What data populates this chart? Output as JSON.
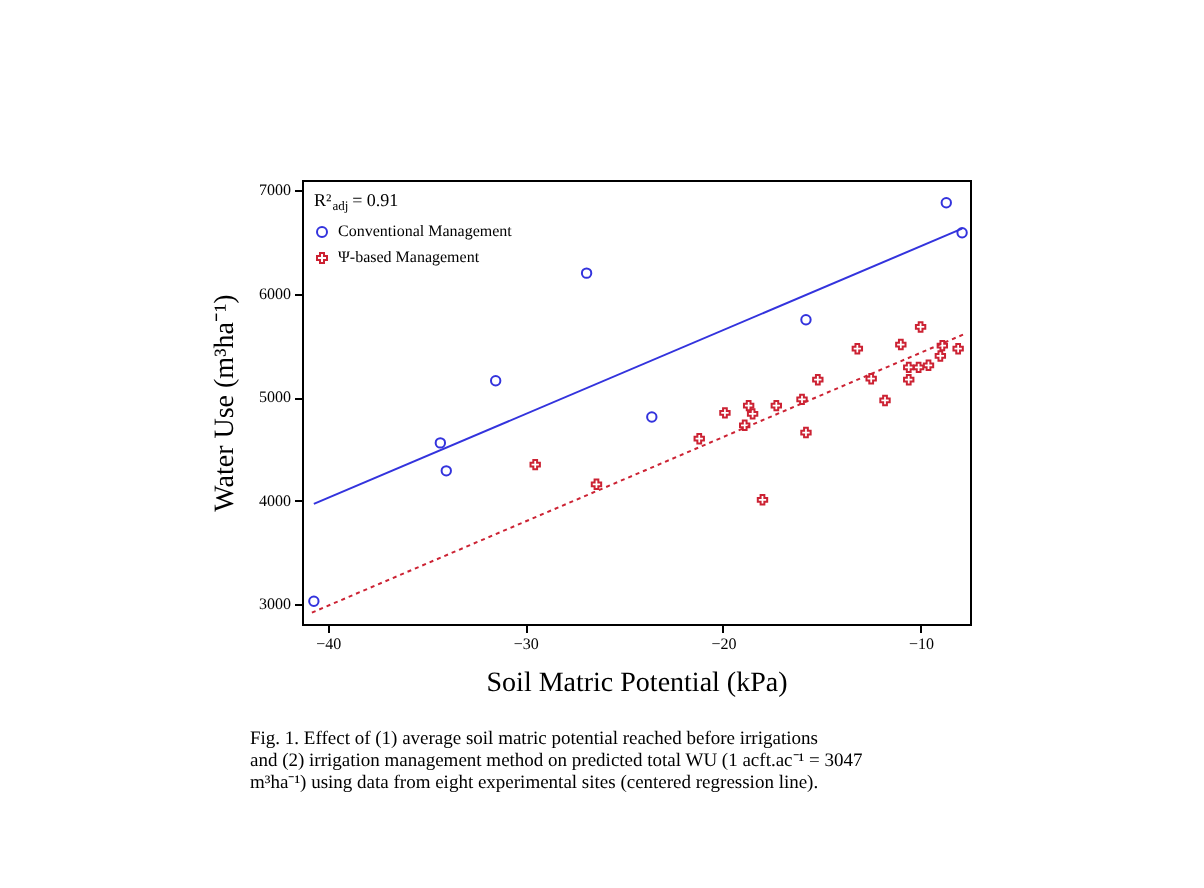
{
  "chart_data": {
    "type": "scatter",
    "xlabel": "Soil Matric Potential (kPa)",
    "ylabel": "Water Use (m³ha⁻¹)",
    "xlim": [
      -41.3,
      -7.5
    ],
    "xticks": [
      -40,
      -30,
      -20,
      -10
    ],
    "ylim": [
      2810,
      7100
    ],
    "yticks": [
      3000,
      4000,
      5000,
      6000,
      7000
    ],
    "grid": false,
    "legend": "top left",
    "series": [
      {
        "name": "Conventional Management",
        "color": "#3333dd",
        "marker": "circle",
        "x": [
          -40.7,
          -34.3,
          -34.0,
          -31.5,
          -26.9,
          -23.6,
          -15.8,
          -8.7,
          -7.9
        ],
        "values": [
          3030,
          4560,
          4290,
          5160,
          6200,
          4810,
          5750,
          6880,
          6590
        ]
      },
      {
        "name": "Ψ-based Management",
        "color": "#cc2233",
        "marker": "cross",
        "x": [
          -29.5,
          -26.4,
          -21.2,
          -19.9,
          -18.7,
          -18.5,
          -18.9,
          -18.0,
          -17.3,
          -16.0,
          -15.8,
          -15.2,
          -13.2,
          -12.5,
          -11.8,
          -11.0,
          -10.6,
          -10.6,
          -10.1,
          -10.0,
          -9.6,
          -9.0,
          -8.9,
          -8.1
        ],
        "values": [
          4350,
          4160,
          4600,
          4850,
          4920,
          4840,
          4730,
          4010,
          4920,
          4980,
          4660,
          5170,
          5470,
          5180,
          4970,
          5510,
          5290,
          5170,
          5290,
          5680,
          5310,
          5400,
          5500,
          5470
        ]
      },
      {
        "color": "#3333dd",
        "type": "line",
        "line_style": "solid",
        "x": [
          -40.7,
          -7.9
        ],
        "values": [
          3970,
          6630
        ]
      },
      {
        "color": "#cc2233",
        "type": "line",
        "line_style": "dotted",
        "x": [
          -40.8,
          -7.8
        ],
        "values": [
          2920,
          5610
        ]
      }
    ],
    "annotations": [
      "R²$_{adj}$ = 0.91",
      "Fig. 1. Effect of (1) average soil matric potential reached before irrigations and (2) irrigation management method on predicted total WU (1 acft.ac⁻¹ = 3047 m³ha⁻¹) using data from eight experimental sites (centered regression line)."
    ]
  }
}
